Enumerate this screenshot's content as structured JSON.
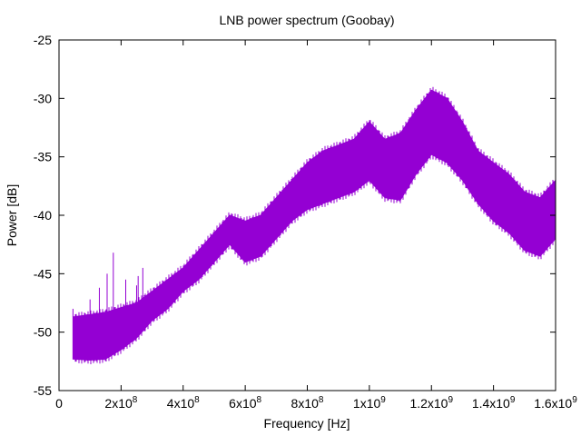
{
  "chart_data": {
    "type": "area",
    "title": "LNB power spectrum (Goobay)",
    "xlabel": "Frequency [Hz]",
    "ylabel": "Power [dB]",
    "xlim": [
      0,
      1600000000
    ],
    "ylim": [
      -55,
      -25
    ],
    "grid": false,
    "legend": "none",
    "x_ticks": [
      {
        "value": 0,
        "mantissa": "0",
        "exponent": ""
      },
      {
        "value": 200000000,
        "mantissa": "2x10",
        "exponent": "8"
      },
      {
        "value": 400000000,
        "mantissa": "4x10",
        "exponent": "8"
      },
      {
        "value": 600000000,
        "mantissa": "6x10",
        "exponent": "8"
      },
      {
        "value": 800000000,
        "mantissa": "8x10",
        "exponent": "8"
      },
      {
        "value": 1000000000,
        "mantissa": "1x10",
        "exponent": "9"
      },
      {
        "value": 1200000000,
        "mantissa": "1.2x10",
        "exponent": "9"
      },
      {
        "value": 1400000000,
        "mantissa": "1.4x10",
        "exponent": "9"
      },
      {
        "value": 1600000000,
        "mantissa": "1.6x10",
        "exponent": "9"
      }
    ],
    "y_ticks": [
      "-25",
      "-30",
      "-35",
      "-40",
      "-45",
      "-50",
      "-55"
    ],
    "series": [
      {
        "color": "#9400d3",
        "x": [
          45000000,
          100000000,
          150000000,
          200000000,
          250000000,
          300000000,
          350000000,
          400000000,
          450000000,
          500000000,
          550000000,
          600000000,
          650000000,
          700000000,
          750000000,
          800000000,
          850000000,
          900000000,
          950000000,
          1000000000,
          1050000000,
          1100000000,
          1150000000,
          1200000000,
          1250000000,
          1300000000,
          1350000000,
          1400000000,
          1450000000,
          1500000000,
          1550000000,
          1600000000
        ],
        "y_upper": [
          -48.7,
          -48.5,
          -48.3,
          -47.9,
          -47.5,
          -46.5,
          -45.5,
          -44.5,
          -43.0,
          -41.5,
          -40.0,
          -40.5,
          -40.0,
          -38.5,
          -37.0,
          -35.5,
          -34.5,
          -34.0,
          -33.5,
          -32.0,
          -33.5,
          -33.0,
          -31.0,
          -29.3,
          -30.0,
          -32.0,
          -34.5,
          -35.5,
          -36.5,
          -38.0,
          -38.5,
          -37.0
        ],
        "y_lower": [
          -52.3,
          -52.4,
          -52.3,
          -51.5,
          -50.5,
          -49.0,
          -48.0,
          -46.5,
          -45.5,
          -44.0,
          -42.5,
          -44.0,
          -43.5,
          -42.0,
          -40.5,
          -39.5,
          -39.0,
          -38.5,
          -38.0,
          -37.0,
          -38.5,
          -38.7,
          -36.5,
          -34.8,
          -35.5,
          -37.0,
          -39.0,
          -40.5,
          -41.5,
          -43.0,
          -43.5,
          -42.0
        ],
        "spikes": [
          {
            "x": 45000000,
            "y": -48.0
          },
          {
            "x": 100000000,
            "y": -47.2
          },
          {
            "x": 130000000,
            "y": -46.2
          },
          {
            "x": 155000000,
            "y": -45.0
          },
          {
            "x": 175000000,
            "y": -43.2
          },
          {
            "x": 215000000,
            "y": -45.5
          },
          {
            "x": 250000000,
            "y": -46.0
          },
          {
            "x": 255000000,
            "y": -45.2
          },
          {
            "x": 270000000,
            "y": -44.5
          }
        ]
      }
    ]
  }
}
